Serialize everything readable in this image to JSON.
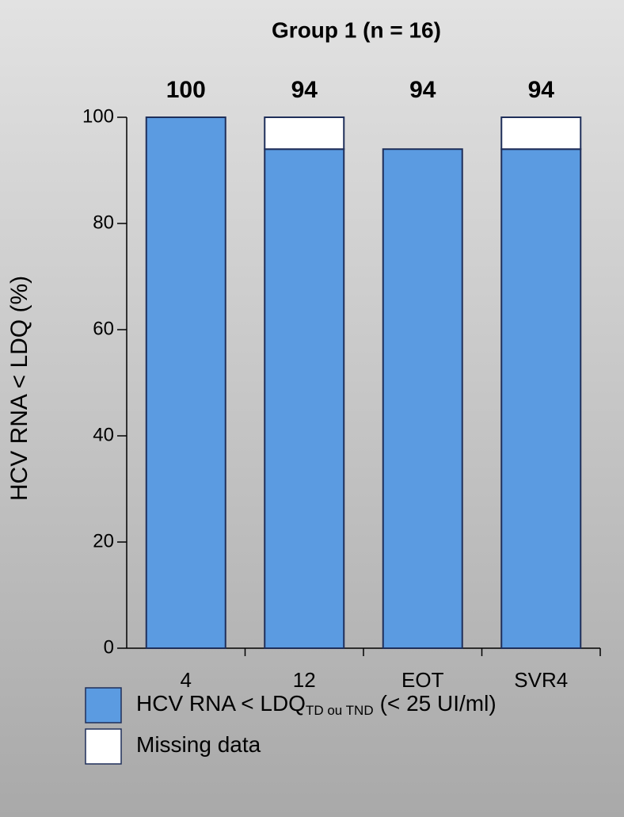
{
  "chart_data": {
    "type": "stacked_bar",
    "title": "Group 1 (n = 16)",
    "y_label": "HCV RNA < LDQ (%)",
    "categories": [
      "4",
      "12",
      "EOT",
      "SVR4"
    ],
    "series": [
      {
        "name": "HCV RNA < LDQ",
        "legend_subscript": "TD ou TND",
        "legend_suffix": "(< 25 UI/ml)",
        "color": "#5b9be1",
        "values": [
          100,
          94,
          94,
          94
        ]
      },
      {
        "name": "Missing data",
        "color": "#ffffff",
        "values": [
          0,
          6,
          0,
          6
        ]
      }
    ],
    "ylim": [
      0,
      100
    ],
    "yticks": [
      0,
      20,
      40,
      60,
      80,
      100
    ]
  }
}
